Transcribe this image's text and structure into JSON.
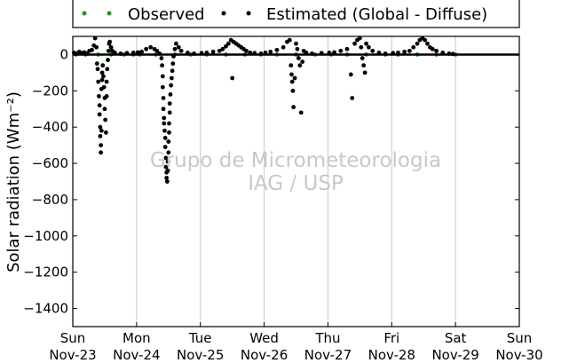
{
  "chart_data": {
    "type": "scatter",
    "ylabel": "Solar radiation (Wm⁻²)",
    "ylim": [
      -1500,
      100
    ],
    "yticks": [
      0,
      -200,
      -400,
      -600,
      -800,
      -1000,
      -1200,
      -1400
    ],
    "xlim": [
      "2025-11-23",
      "2025-11-30"
    ],
    "xticks": [
      {
        "day": "Sun",
        "date": "Nov-23"
      },
      {
        "day": "Mon",
        "date": "Nov-24"
      },
      {
        "day": "Tue",
        "date": "Nov-25"
      },
      {
        "day": "Wed",
        "date": "Nov-26"
      },
      {
        "day": "Thu",
        "date": "Nov-27"
      },
      {
        "day": "Fri",
        "date": "Nov-28"
      },
      {
        "day": "Sat",
        "date": "Nov-29"
      },
      {
        "day": "Sun",
        "date": "Nov-30"
      }
    ],
    "grid": "vertical",
    "legend_position": "top",
    "watermark": [
      "Grupo de Micrometeorologia",
      "IAG / USP"
    ],
    "series": [
      {
        "name": "Observed",
        "color": "#2e8b2e",
        "marker": "dot",
        "points": [
          [
            0.05,
            0
          ],
          [
            0.2,
            0
          ],
          [
            0.4,
            0
          ],
          [
            0.6,
            0
          ],
          [
            0.8,
            0
          ],
          [
            0.95,
            0
          ],
          [
            1.05,
            0
          ],
          [
            1.3,
            0
          ],
          [
            1.6,
            0
          ],
          [
            1.85,
            0
          ],
          [
            2.1,
            0
          ],
          [
            2.4,
            0
          ],
          [
            2.7,
            0
          ],
          [
            2.95,
            0
          ],
          [
            3.2,
            0
          ],
          [
            3.5,
            0
          ],
          [
            3.8,
            0
          ],
          [
            4.05,
            0
          ],
          [
            4.3,
            0
          ],
          [
            4.6,
            0
          ],
          [
            4.9,
            0
          ],
          [
            5.1,
            0
          ],
          [
            5.4,
            0
          ],
          [
            5.7,
            0
          ],
          [
            6.0,
            0
          ]
        ]
      },
      {
        "name": "Estimated (Global - Diffuse)",
        "color": "#000000",
        "marker": "dot",
        "points": [
          [
            0.02,
            10
          ],
          [
            0.06,
            5
          ],
          [
            0.1,
            15
          ],
          [
            0.14,
            8
          ],
          [
            0.18,
            12
          ],
          [
            0.22,
            5
          ],
          [
            0.26,
            20
          ],
          [
            0.3,
            25
          ],
          [
            0.33,
            50
          ],
          [
            0.35,
            90
          ],
          [
            0.37,
            40
          ],
          [
            0.38,
            -50
          ],
          [
            0.39,
            -80
          ],
          [
            0.4,
            -150
          ],
          [
            0.41,
            -230
          ],
          [
            0.42,
            -280
          ],
          [
            0.42,
            -330
          ],
          [
            0.43,
            -400
          ],
          [
            0.43,
            -450
          ],
          [
            0.44,
            -500
          ],
          [
            0.44,
            -540
          ],
          [
            0.45,
            -420
          ],
          [
            0.45,
            -190
          ],
          [
            0.46,
            -140
          ],
          [
            0.46,
            -100
          ],
          [
            0.47,
            -60
          ],
          [
            0.48,
            -120
          ],
          [
            0.49,
            -180
          ],
          [
            0.5,
            -240
          ],
          [
            0.5,
            -300
          ],
          [
            0.51,
            -360
          ],
          [
            0.52,
            -430
          ],
          [
            0.53,
            -230
          ],
          [
            0.53,
            -150
          ],
          [
            0.54,
            -80
          ],
          [
            0.55,
            -30
          ],
          [
            0.56,
            20
          ],
          [
            0.57,
            60
          ],
          [
            0.58,
            70
          ],
          [
            0.6,
            40
          ],
          [
            0.62,
            20
          ],
          [
            0.66,
            10
          ],
          [
            0.75,
            5
          ],
          [
            0.85,
            8
          ],
          [
            0.95,
            10
          ],
          [
            1.02,
            12
          ],
          [
            1.08,
            15
          ],
          [
            1.15,
            30
          ],
          [
            1.22,
            40
          ],
          [
            1.28,
            30
          ],
          [
            1.32,
            20
          ],
          [
            1.36,
            5
          ],
          [
            1.39,
            -20
          ],
          [
            1.4,
            -60
          ],
          [
            1.41,
            -120
          ],
          [
            1.41,
            -180
          ],
          [
            1.42,
            -240
          ],
          [
            1.42,
            -300
          ],
          [
            1.43,
            -350
          ],
          [
            1.43,
            -380
          ],
          [
            1.44,
            -420
          ],
          [
            1.45,
            -460
          ],
          [
            1.45,
            -510
          ],
          [
            1.46,
            -570
          ],
          [
            1.46,
            -620
          ],
          [
            1.47,
            -650
          ],
          [
            1.47,
            -680
          ],
          [
            1.48,
            -700
          ],
          [
            1.49,
            -640
          ],
          [
            1.49,
            -590
          ],
          [
            1.5,
            -540
          ],
          [
            1.5,
            -480
          ],
          [
            1.51,
            -430
          ],
          [
            1.51,
            -380
          ],
          [
            1.52,
            -320
          ],
          [
            1.52,
            -270
          ],
          [
            1.53,
            -220
          ],
          [
            1.54,
            -170
          ],
          [
            1.55,
            -130
          ],
          [
            1.56,
            -90
          ],
          [
            1.57,
            -50
          ],
          [
            1.58,
            -10
          ],
          [
            1.6,
            30
          ],
          [
            1.62,
            60
          ],
          [
            1.66,
            40
          ],
          [
            1.7,
            20
          ],
          [
            1.8,
            10
          ],
          [
            1.9,
            5
          ],
          [
            2.02,
            8
          ],
          [
            2.1,
            10
          ],
          [
            2.2,
            15
          ],
          [
            2.3,
            20
          ],
          [
            2.35,
            30
          ],
          [
            2.4,
            45
          ],
          [
            2.44,
            60
          ],
          [
            2.48,
            80
          ],
          [
            2.5,
            -130
          ],
          [
            2.52,
            70
          ],
          [
            2.56,
            60
          ],
          [
            2.6,
            50
          ],
          [
            2.64,
            40
          ],
          [
            2.68,
            30
          ],
          [
            2.72,
            20
          ],
          [
            2.78,
            10
          ],
          [
            2.85,
            8
          ],
          [
            2.95,
            5
          ],
          [
            3.02,
            10
          ],
          [
            3.1,
            15
          ],
          [
            3.2,
            25
          ],
          [
            3.3,
            40
          ],
          [
            3.36,
            70
          ],
          [
            3.4,
            80
          ],
          [
            3.42,
            -60
          ],
          [
            3.43,
            -110
          ],
          [
            3.44,
            -150
          ],
          [
            3.45,
            -200
          ],
          [
            3.46,
            -290
          ],
          [
            3.48,
            -130
          ],
          [
            3.5,
            60
          ],
          [
            3.52,
            30
          ],
          [
            3.54,
            -20
          ],
          [
            3.56,
            -60
          ],
          [
            3.58,
            -320
          ],
          [
            3.6,
            -40
          ],
          [
            3.62,
            20
          ],
          [
            3.66,
            10
          ],
          [
            3.75,
            5
          ],
          [
            3.9,
            8
          ],
          [
            4.02,
            10
          ],
          [
            4.1,
            12
          ],
          [
            4.2,
            20
          ],
          [
            4.3,
            30
          ],
          [
            4.36,
            -110
          ],
          [
            4.38,
            -240
          ],
          [
            4.42,
            60
          ],
          [
            4.46,
            80
          ],
          [
            4.5,
            90
          ],
          [
            4.52,
            40
          ],
          [
            4.54,
            -20
          ],
          [
            4.56,
            -60
          ],
          [
            4.58,
            -100
          ],
          [
            4.6,
            60
          ],
          [
            4.64,
            40
          ],
          [
            4.7,
            20
          ],
          [
            4.8,
            10
          ],
          [
            4.9,
            5
          ],
          [
            5.02,
            8
          ],
          [
            5.1,
            10
          ],
          [
            5.2,
            15
          ],
          [
            5.28,
            20
          ],
          [
            5.34,
            40
          ],
          [
            5.4,
            60
          ],
          [
            5.44,
            80
          ],
          [
            5.48,
            90
          ],
          [
            5.52,
            80
          ],
          [
            5.56,
            60
          ],
          [
            5.6,
            40
          ],
          [
            5.64,
            30
          ],
          [
            5.7,
            20
          ],
          [
            5.8,
            10
          ],
          [
            5.9,
            5
          ],
          [
            5.96,
            3
          ]
        ]
      }
    ]
  }
}
